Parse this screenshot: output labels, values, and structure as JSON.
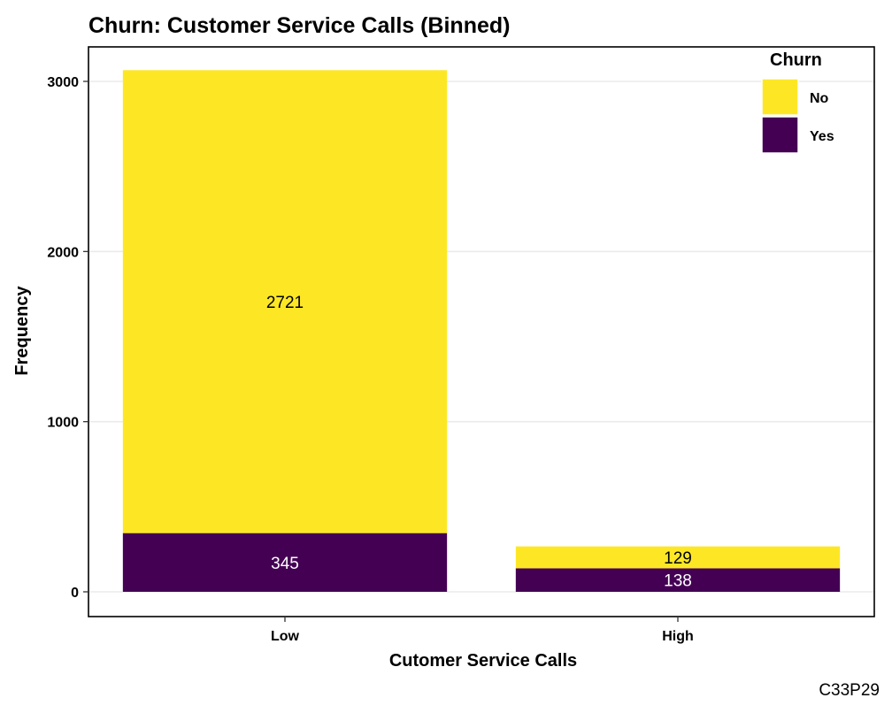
{
  "chart_data": {
    "type": "bar",
    "stacked": true,
    "title": "Churn: Customer Service Calls (Binned)",
    "xlabel": "Cutomer Service Calls",
    "ylabel": "Frequency",
    "categories": [
      "Low",
      "High"
    ],
    "series": [
      {
        "name": "Yes",
        "values": [
          345,
          138
        ],
        "color": "#440154",
        "label_color": "#ffffff"
      },
      {
        "name": "No",
        "values": [
          2721,
          129
        ],
        "color": "#FDE725",
        "label_color": "#000000"
      }
    ],
    "ylim": [
      -140,
      3140
    ],
    "yticks": [
      0,
      1000,
      2000,
      3000
    ],
    "grid": true,
    "legend": {
      "title": "Churn",
      "position": "top-right",
      "order": [
        "No",
        "Yes"
      ]
    },
    "caption": "C33P29"
  }
}
